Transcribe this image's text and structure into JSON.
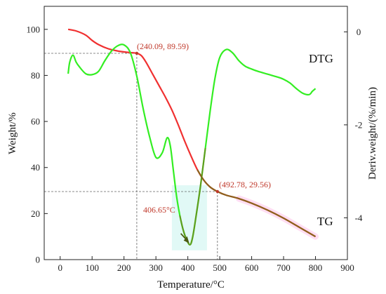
{
  "chart_data": {
    "type": "line",
    "xlabel": "Temperature/°C",
    "ylabel_left": "Weight/%",
    "ylabel_right": "Deriv.weight/(%/min)",
    "xlim": [
      -50,
      900
    ],
    "ylim_left": [
      0,
      110
    ],
    "ylim_right": [
      -4.9,
      0.55
    ],
    "x_ticks": [
      0,
      100,
      200,
      300,
      400,
      500,
      600,
      700,
      800,
      900
    ],
    "y_left_ticks": [
      0,
      20,
      40,
      60,
      80,
      100
    ],
    "y_right_ticks": [
      0,
      -2,
      -4
    ],
    "series": [
      {
        "name": "TG",
        "axis": "left",
        "x": [
          25,
          50,
          80,
          100,
          120,
          150,
          180,
          200,
          220,
          240.09,
          255,
          270,
          290,
          310,
          330,
          350,
          370,
          390,
          410,
          430,
          450,
          470,
          492.78,
          520,
          560,
          600,
          650,
          700,
          750,
          800
        ],
        "y": [
          100,
          99.3,
          97.5,
          95.2,
          93.4,
          91.6,
          90.6,
          90.2,
          89.9,
          89.59,
          88.5,
          85.5,
          80.5,
          75.5,
          70.5,
          65,
          58.5,
          51.5,
          45,
          39,
          34.5,
          31.5,
          29.56,
          28,
          26.5,
          24.5,
          21.5,
          18,
          14,
          10
        ]
      },
      {
        "name": "DTG",
        "axis": "right",
        "x": [
          25,
          30,
          40,
          50,
          60,
          80,
          100,
          120,
          140,
          160,
          180,
          200,
          220,
          240,
          260,
          280,
          300,
          320,
          335,
          345,
          355,
          365,
          375,
          385,
          395,
          406.65,
          415,
          425,
          440,
          455,
          470,
          485,
          500,
          520,
          540,
          560,
          580,
          600,
          620,
          650,
          680,
          700,
          720,
          740,
          760,
          780,
          790,
          800
        ],
        "y": [
          -0.9,
          -0.65,
          -0.5,
          -0.65,
          -0.75,
          -0.9,
          -0.92,
          -0.85,
          -0.62,
          -0.42,
          -0.3,
          -0.28,
          -0.45,
          -0.95,
          -1.65,
          -2.25,
          -2.7,
          -2.6,
          -2.28,
          -2.45,
          -3.0,
          -3.55,
          -3.95,
          -4.25,
          -4.45,
          -4.58,
          -4.42,
          -4.0,
          -3.3,
          -2.5,
          -1.7,
          -1.0,
          -0.55,
          -0.38,
          -0.45,
          -0.62,
          -0.74,
          -0.8,
          -0.85,
          -0.91,
          -0.97,
          -1.02,
          -1.1,
          -1.22,
          -1.32,
          -1.35,
          -1.28,
          -1.22
        ]
      }
    ],
    "annotations": [
      {
        "text": "(240.09, 89.59)",
        "x": 240.09,
        "y": 89.59
      },
      {
        "text": "(492.78, 29.56)",
        "x": 492.78,
        "y": 29.56
      },
      {
        "text": "406.65°C",
        "x": 406.65
      }
    ],
    "colors": {
      "TG": "#f03030",
      "DTG": "#33ee22",
      "overlap": "#7a6a1a",
      "annotation": "#c0392b",
      "guide": "#666666",
      "highlight": "#c8f4ee",
      "tail": "#ffd6f0"
    },
    "grid": false,
    "legend": "none"
  }
}
